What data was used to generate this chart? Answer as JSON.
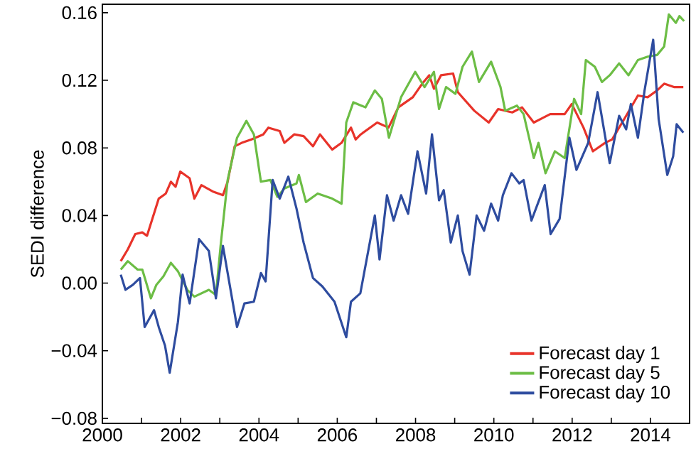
{
  "chart_data": {
    "type": "line",
    "ylabel": "SEDI difference",
    "xlim": [
      2000,
      2015
    ],
    "ylim": [
      -0.083,
      0.165
    ],
    "xticks": [
      2000,
      {
        "value": 2001,
        "label": null
      },
      2002,
      {
        "value": 2003,
        "label": null
      },
      2004,
      {
        "value": 2005,
        "label": null
      },
      2006,
      {
        "value": 2007,
        "label": null
      },
      2008,
      {
        "value": 2009,
        "label": null
      },
      2010,
      {
        "value": 2011,
        "label": null
      },
      2012,
      {
        "value": 2013,
        "label": null
      },
      2014
    ],
    "yticks": [
      {
        "value": -0.08,
        "label": "−0.08"
      },
      {
        "value": -0.04,
        "label": "−0.04"
      },
      {
        "value": 0,
        "label": "0.00"
      },
      {
        "value": 0.04,
        "label": "0.04"
      },
      {
        "value": 0.08,
        "label": "0.08"
      },
      {
        "value": 0.12,
        "label": "0.12"
      },
      {
        "value": 0.16,
        "label": "0.16"
      }
    ],
    "legend": "bottom right",
    "marker": "none",
    "line_style": "solid",
    "series": [
      {
        "name": "Forecast day 1",
        "color": "#e8332a",
        "x": [
          2000.47,
          2000.65,
          2000.84,
          2001.02,
          2001.14,
          2001.44,
          2001.62,
          2001.75,
          2001.87,
          2001.99,
          2002.23,
          2002.35,
          2002.53,
          2002.84,
          2003.08,
          2003.2,
          2003.38,
          2003.56,
          2003.81,
          2004.11,
          2004.24,
          2004.53,
          2004.65,
          2004.9,
          2005.14,
          2005.38,
          2005.56,
          2005.87,
          2006.11,
          2006.35,
          2006.47,
          2006.6,
          2007.02,
          2007.31,
          2007.56,
          2007.93,
          2008.17,
          2008.35,
          2008.47,
          2008.65,
          2008.96,
          2009.08,
          2009.5,
          2009.87,
          2010.11,
          2010.47,
          2010.72,
          2011.02,
          2011.44,
          2011.81,
          2011.99,
          2012.29,
          2012.53,
          2012.84,
          2013.02,
          2013.38,
          2013.68,
          2013.93,
          2014.17,
          2014.35,
          2014.6,
          2014.84
        ],
        "values": [
          0.013,
          0.02,
          0.029,
          0.03,
          0.028,
          0.05,
          0.053,
          0.06,
          0.057,
          0.066,
          0.062,
          0.05,
          0.058,
          0.054,
          0.052,
          0.06,
          0.081,
          0.083,
          0.085,
          0.088,
          0.092,
          0.09,
          0.083,
          0.088,
          0.087,
          0.081,
          0.088,
          0.079,
          0.083,
          0.092,
          0.085,
          0.088,
          0.095,
          0.092,
          0.104,
          0.11,
          0.118,
          0.123,
          0.115,
          0.123,
          0.124,
          0.113,
          0.102,
          0.095,
          0.103,
          0.101,
          0.104,
          0.095,
          0.1,
          0.1,
          0.106,
          0.092,
          0.078,
          0.083,
          0.085,
          0.099,
          0.111,
          0.11,
          0.114,
          0.118,
          0.116,
          0.116
        ]
      },
      {
        "name": "Forecast day 5",
        "color": "#6cbd45",
        "x": [
          2000.47,
          2000.65,
          2000.9,
          2001.02,
          2001.24,
          2001.38,
          2001.56,
          2001.75,
          2001.93,
          2002.17,
          2002.35,
          2002.72,
          2002.9,
          2003.02,
          2003.2,
          2003.44,
          2003.68,
          2003.87,
          2004.05,
          2004.29,
          2004.47,
          2004.65,
          2004.96,
          2005.02,
          2005.2,
          2005.5,
          2005.87,
          2006.11,
          2006.23,
          2006.41,
          2006.72,
          2006.96,
          2007.14,
          2007.32,
          2007.63,
          2007.99,
          2008.23,
          2008.47,
          2008.6,
          2008.78,
          2009.02,
          2009.2,
          2009.44,
          2009.62,
          2009.93,
          2010.17,
          2010.29,
          2010.59,
          2010.76,
          2011.02,
          2011.14,
          2011.32,
          2011.56,
          2011.81,
          2012.05,
          2012.23,
          2012.35,
          2012.58,
          2012.76,
          2012.96,
          2013.2,
          2013.44,
          2013.68,
          2013.93,
          2014.17,
          2014.35,
          2014.47,
          2014.65,
          2014.74,
          2014.86
        ],
        "values": [
          0.008,
          0.013,
          0.008,
          0.008,
          -0.009,
          -0.001,
          0.004,
          0.012,
          0.007,
          -0.004,
          -0.008,
          -0.004,
          -0.007,
          0.022,
          0.061,
          0.086,
          0.096,
          0.088,
          0.06,
          0.061,
          0.051,
          0.056,
          0.059,
          0.064,
          0.048,
          0.053,
          0.05,
          0.047,
          0.095,
          0.107,
          0.104,
          0.114,
          0.109,
          0.086,
          0.11,
          0.125,
          0.116,
          0.125,
          0.103,
          0.116,
          0.112,
          0.128,
          0.137,
          0.119,
          0.131,
          0.116,
          0.102,
          0.105,
          0.1,
          0.074,
          0.083,
          0.065,
          0.078,
          0.074,
          0.109,
          0.1,
          0.132,
          0.128,
          0.119,
          0.123,
          0.13,
          0.123,
          0.132,
          0.134,
          0.135,
          0.14,
          0.159,
          0.154,
          0.158,
          0.155
        ]
      },
      {
        "name": "Forecast day 10",
        "color": "#2e4c9f",
        "x": [
          2000.47,
          2000.59,
          2000.78,
          2000.96,
          2001.08,
          2001.2,
          2001.32,
          2001.44,
          2001.6,
          2001.72,
          2001.93,
          2002.05,
          2002.23,
          2002.47,
          2002.72,
          2002.9,
          2003.08,
          2003.44,
          2003.63,
          2003.87,
          2004.05,
          2004.17,
          2004.35,
          2004.53,
          2004.75,
          2004.96,
          2005.14,
          2005.38,
          2005.62,
          2005.93,
          2006.23,
          2006.35,
          2006.59,
          2006.96,
          2007.08,
          2007.27,
          2007.44,
          2007.63,
          2007.81,
          2008.05,
          2008.27,
          2008.42,
          2008.6,
          2008.72,
          2008.9,
          2009.08,
          2009.2,
          2009.38,
          2009.56,
          2009.75,
          2009.93,
          2010.11,
          2010.23,
          2010.45,
          2010.65,
          2010.76,
          2010.96,
          2011.3,
          2011.45,
          2011.68,
          2011.93,
          2012.11,
          2012.41,
          2012.65,
          2012.96,
          2013.2,
          2013.38,
          2013.5,
          2013.68,
          2013.85,
          2014.07,
          2014.21,
          2014.43,
          2014.58,
          2014.67,
          2014.84
        ],
        "values": [
          0.005,
          -0.004,
          -0.001,
          0.003,
          -0.026,
          -0.021,
          -0.016,
          -0.026,
          -0.037,
          -0.053,
          -0.023,
          0.005,
          -0.012,
          0.026,
          0.019,
          -0.009,
          0.022,
          -0.026,
          -0.012,
          -0.011,
          0.006,
          0.001,
          0.061,
          0.05,
          0.063,
          0.044,
          0.024,
          0.003,
          -0.002,
          -0.011,
          -0.032,
          -0.011,
          -0.006,
          0.04,
          0.014,
          0.052,
          0.037,
          0.052,
          0.041,
          0.078,
          0.053,
          0.088,
          0.049,
          0.055,
          0.024,
          0.04,
          0.019,
          0.005,
          0.04,
          0.031,
          0.047,
          0.037,
          0.052,
          0.065,
          0.059,
          0.061,
          0.037,
          0.058,
          0.029,
          0.038,
          0.086,
          0.067,
          0.083,
          0.113,
          0.071,
          0.099,
          0.091,
          0.106,
          0.086,
          0.114,
          0.144,
          0.097,
          0.064,
          0.075,
          0.094,
          0.089
        ]
      }
    ]
  }
}
